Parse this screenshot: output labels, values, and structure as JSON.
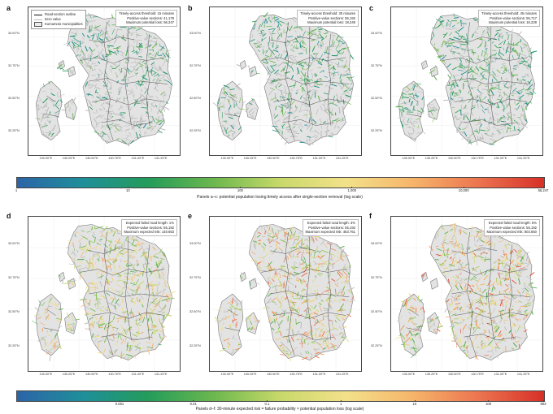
{
  "legend": {
    "items": [
      {
        "label": "Road-section outline",
        "style": "line"
      },
      {
        "label": "Zero value",
        "style": "zero"
      },
      {
        "label": "Kumamoto municipalities",
        "style": "box"
      }
    ]
  },
  "axes": {
    "lat_labels": [
      "33.00°N",
      "32.75°N",
      "32.50°N",
      "32.25°N"
    ],
    "lon_labels": [
      "130.00°E",
      "130.25°E",
      "130.50°E",
      "130.75°E",
      "131.00°E",
      "131.25°E"
    ]
  },
  "panels": [
    {
      "letter": "a",
      "lines": [
        "Timely-access threshold: 15 minutes",
        "Positive-value sections: 41,178",
        "Maximum potential loss: 56,247"
      ],
      "scheme": "top",
      "density": 0.55,
      "intensity": 0.28
    },
    {
      "letter": "b",
      "lines": [
        "Timely-access threshold: 30 minutes",
        "Positive-value sections: 55,192",
        "Maximum potential loss: 18,249"
      ],
      "scheme": "top",
      "density": 0.8,
      "intensity": 0.3
    },
    {
      "letter": "c",
      "lines": [
        "Timely-access threshold: 45 minutes",
        "Positive-value sections: 55,717",
        "Maximum potential loss: 16,228"
      ],
      "scheme": "top",
      "density": 0.85,
      "intensity": 0.3
    },
    {
      "letter": "d",
      "lines": [
        "Expected failed road length: 1%",
        "Positive-value sections: 55,192",
        "Maximum expected risk: 148.653"
      ],
      "scheme": "bottom",
      "density": 0.8,
      "intensity": 0.52
    },
    {
      "letter": "e",
      "lines": [
        "Expected failed road length: 3%",
        "Positive-value sections: 55,192",
        "Maximum expected risk: 463.761"
      ],
      "scheme": "bottom",
      "density": 0.8,
      "intensity": 0.62
    },
    {
      "letter": "f",
      "lines": [
        "Expected failed road length: 5%",
        "Positive-value sections: 55,192",
        "Maximum expected risk: 803.650"
      ],
      "scheme": "bottom",
      "density": 0.8,
      "intensity": 0.66
    }
  ],
  "colorbars": [
    {
      "ticks": [
        "1",
        "10",
        "100",
        "1,000",
        "10,000",
        "56,247"
      ],
      "tick_pos": [
        0,
        0.212,
        0.425,
        0.637,
        0.849,
        1.0
      ],
      "label": "Panels a–c: potential population losing timely access after single-section removal (log scale)"
    },
    {
      "ticks": [
        "0.001",
        "0.01",
        "0.1",
        "1",
        "10",
        "100",
        "803"
      ],
      "tick_pos": [
        0.196,
        0.336,
        0.476,
        0.616,
        0.756,
        0.896,
        1.0
      ],
      "label": "Panels d–f: 30-minute expected risk = failure probability × potential population loss (log scale)"
    }
  ],
  "colors": {
    "land": "#e3e3e3",
    "land_edge": "#7a7a7a",
    "road_zero": "#bdbdbd",
    "cmap": [
      "#2c64a8",
      "#1f8f9a",
      "#249c5a",
      "#6db84e",
      "#c9d96a",
      "#f3e18a",
      "#f6b56a",
      "#ec7550",
      "#d73027"
    ]
  }
}
